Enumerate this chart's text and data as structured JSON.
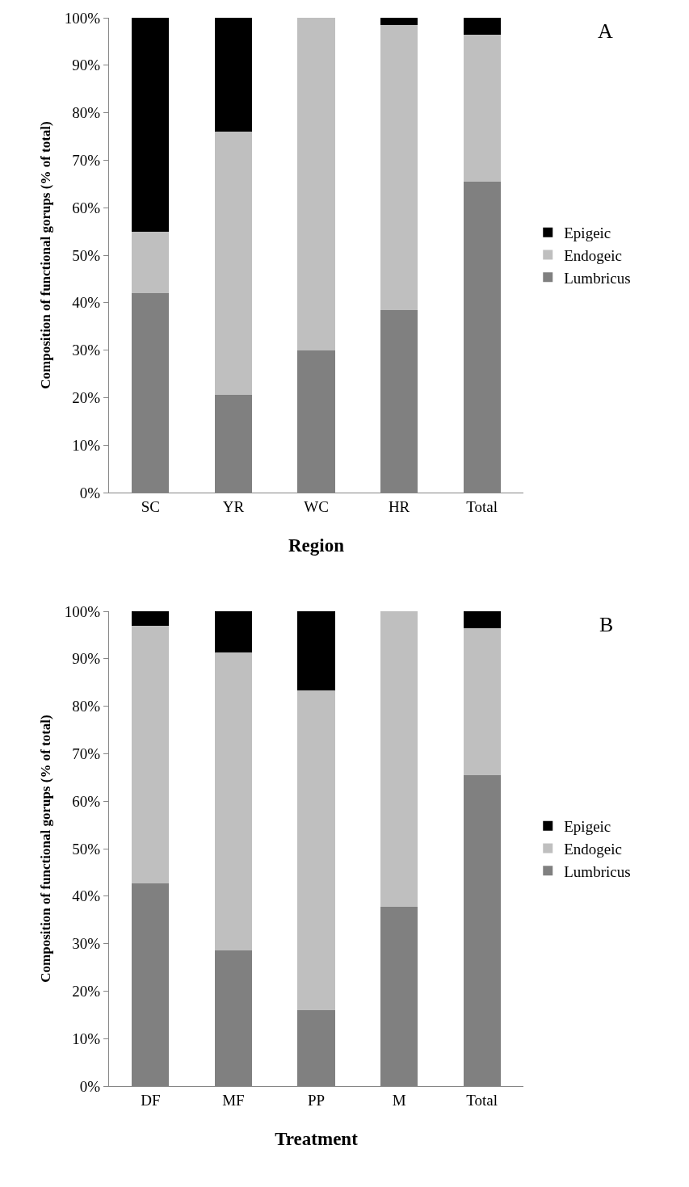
{
  "chart_data": [
    {
      "type": "bar",
      "stacked": true,
      "xlabel": "Region",
      "ylabel": "Composition of functional gorups (% of total)",
      "categories": [
        "SC",
        "YR",
        "WC",
        "HR",
        "Total"
      ],
      "ylim": [
        0,
        100
      ],
      "yticks": [
        {
          "value": 0,
          "label": "0%"
        },
        {
          "value": 10,
          "label": "10%"
        },
        {
          "value": 20,
          "label": "20%"
        },
        {
          "value": 30,
          "label": "30%"
        },
        {
          "value": 40,
          "label": "40%"
        },
        {
          "value": 50,
          "label": "50%"
        },
        {
          "value": 60,
          "label": "60%"
        },
        {
          "value": 70,
          "label": "70%"
        },
        {
          "value": 80,
          "label": "80%"
        },
        {
          "value": 90,
          "label": "90%"
        },
        {
          "value": 100,
          "label": "100%"
        }
      ],
      "grid": false,
      "legend": "right",
      "annotations": [
        "A"
      ],
      "series": [
        {
          "name": "Lumbricus",
          "color": "#808080",
          "values": [
            42,
            20.5,
            30,
            38.5,
            65.5
          ]
        },
        {
          "name": "Endogeic",
          "color": "#bfbfbf",
          "values": [
            13,
            55.5,
            70,
            60,
            31
          ]
        },
        {
          "name": "Epigeic",
          "color": "#000000",
          "values": [
            45,
            24,
            0,
            1.5,
            3.5
          ]
        }
      ]
    },
    {
      "type": "bar",
      "stacked": true,
      "xlabel": "Treatment",
      "ylabel": "Composition of functional gorups (% of total)",
      "categories": [
        "DF",
        "MF",
        "PP",
        "M",
        "Total"
      ],
      "ylim": [
        0,
        100
      ],
      "yticks": [
        {
          "value": 0,
          "label": "0%"
        },
        {
          "value": 10,
          "label": "10%"
        },
        {
          "value": 20,
          "label": "20%"
        },
        {
          "value": 30,
          "label": "30%"
        },
        {
          "value": 40,
          "label": "40%"
        },
        {
          "value": 50,
          "label": "50%"
        },
        {
          "value": 60,
          "label": "60%"
        },
        {
          "value": 70,
          "label": "70%"
        },
        {
          "value": 80,
          "label": "80%"
        },
        {
          "value": 90,
          "label": "90%"
        },
        {
          "value": 100,
          "label": "100%"
        }
      ],
      "grid": false,
      "legend": "right",
      "annotations": [
        "B"
      ],
      "series": [
        {
          "name": "Lumbricus",
          "color": "#808080",
          "values": [
            42.7,
            28.5,
            16,
            37.8,
            65.5
          ]
        },
        {
          "name": "Endogeic",
          "color": "#bfbfbf",
          "values": [
            54.3,
            62.8,
            67.3,
            62.2,
            31
          ]
        },
        {
          "name": "Epigeic",
          "color": "#000000",
          "values": [
            3,
            8.7,
            16.7,
            0,
            3.5
          ]
        }
      ]
    }
  ]
}
